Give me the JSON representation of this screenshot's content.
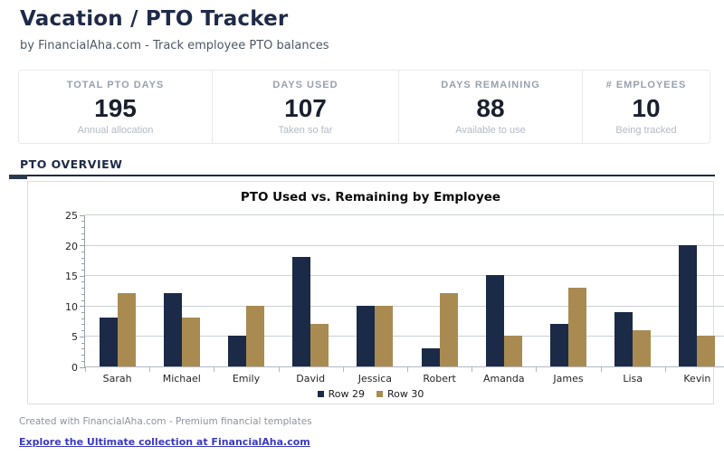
{
  "header": {
    "title": "Vacation / PTO Tracker",
    "subtitle": "by FinancialAha.com - Track employee PTO balances"
  },
  "stats": [
    {
      "label": "TOTAL PTO DAYS",
      "value": "195",
      "sub": "Annual allocation"
    },
    {
      "label": "DAYS USED",
      "value": "107",
      "sub": "Taken so far"
    },
    {
      "label": "DAYS REMAINING",
      "value": "88",
      "sub": "Available to use"
    },
    {
      "label": "# EMPLOYEES",
      "value": "10",
      "sub": "Being tracked"
    }
  ],
  "section": {
    "title": "PTO OVERVIEW"
  },
  "chart_data": {
    "type": "bar",
    "title": "PTO Used vs. Remaining by Employee",
    "categories": [
      "Sarah",
      "Michael",
      "Emily",
      "David",
      "Jessica",
      "Robert",
      "Amanda",
      "James",
      "Lisa",
      "Kevin"
    ],
    "series": [
      {
        "name": "Row 29",
        "color": "#1b2a47",
        "values": [
          8,
          12,
          5,
          18,
          10,
          3,
          15,
          7,
          9,
          20
        ]
      },
      {
        "name": "Row 30",
        "color": "#a98b52",
        "values": [
          12,
          8,
          10,
          7,
          10,
          12,
          5,
          13,
          6,
          5
        ]
      }
    ],
    "ylim": [
      0,
      25
    ],
    "ytick_step": 5,
    "minor_tick_step": 1,
    "grid": true,
    "legend_position": "bottom"
  },
  "footer": {
    "credit": "Created with FinancialAha.com - Premium financial templates",
    "link": "Explore the Ultimate collection at FinancialAha.com"
  },
  "colors": {
    "accent_navy": "#1e2a47",
    "bar_navy": "#1b2a47",
    "bar_tan": "#a98b52",
    "link_blue": "#3a3ac1"
  }
}
